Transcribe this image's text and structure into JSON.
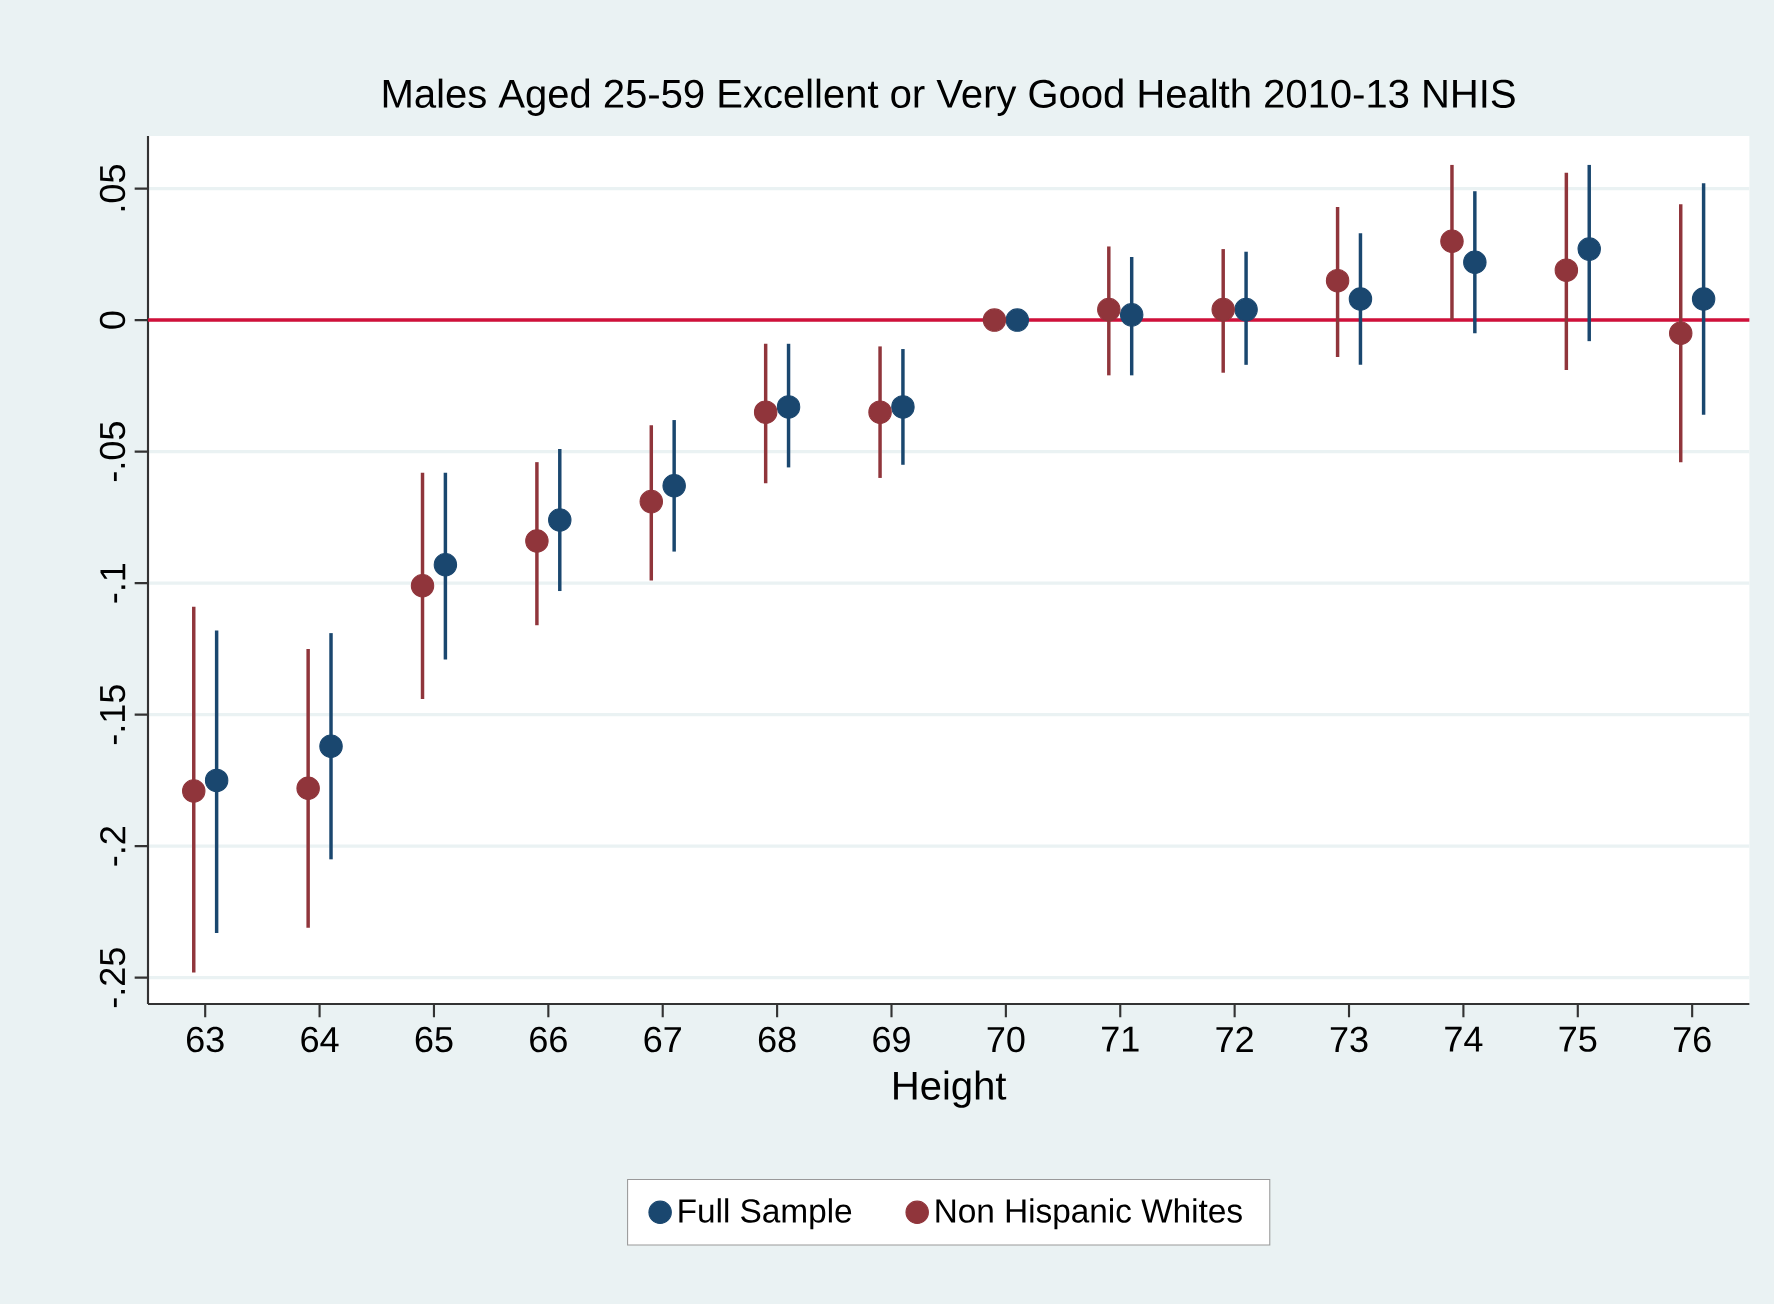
{
  "chart_data": {
    "type": "scatter",
    "title": "Males Aged 25-59 Excellent or Very Good Health 2010-13 NHIS",
    "xlabel": "Height",
    "xlim": [
      62.5,
      76.5
    ],
    "ylim": [
      -0.26,
      0.07
    ],
    "xticks": [
      63,
      64,
      65,
      66,
      67,
      68,
      69,
      70,
      71,
      72,
      73,
      74,
      75,
      76
    ],
    "yticks": [
      {
        "value": 0.05,
        "label": ".05"
      },
      {
        "value": 0,
        "label": "0"
      },
      {
        "value": -0.05,
        "label": "-.05"
      },
      {
        "value": -0.1,
        "label": "-.1"
      },
      {
        "value": -0.15,
        "label": "-.15"
      },
      {
        "value": -0.2,
        "label": "-.2"
      },
      {
        "value": -0.25,
        "label": "-.25"
      }
    ],
    "grid": "y",
    "legend": "bottom",
    "marker": "circle",
    "ref_lines": [
      {
        "axis": "y",
        "value": 0,
        "color": "#d0103a"
      }
    ],
    "series": [
      {
        "name": "Full Sample",
        "color": "#1a476f",
        "x": [
          63.1,
          64.1,
          65.1,
          66.1,
          67.1,
          68.1,
          69.1,
          70.1,
          71.1,
          72.1,
          73.1,
          74.1,
          75.1,
          76.1
        ],
        "values": [
          -0.175,
          -0.162,
          -0.093,
          -0.076,
          -0.063,
          -0.033,
          -0.033,
          0,
          0.002,
          0.004,
          0.008,
          0.022,
          0.027,
          0.008
        ],
        "errors": [
          [
            -0.233,
            -0.118
          ],
          [
            -0.205,
            -0.119
          ],
          [
            -0.129,
            -0.058
          ],
          [
            -0.103,
            -0.049
          ],
          [
            -0.088,
            -0.038
          ],
          [
            -0.056,
            -0.009
          ],
          [
            -0.055,
            -0.011
          ],
          null,
          [
            -0.021,
            0.024
          ],
          [
            -0.017,
            0.026
          ],
          [
            -0.017,
            0.033
          ],
          [
            -0.005,
            0.049
          ],
          [
            -0.008,
            0.059
          ],
          [
            -0.036,
            0.052
          ]
        ]
      },
      {
        "name": "Non Hispanic Whites",
        "color": "#90353b",
        "x": [
          62.9,
          63.9,
          64.9,
          65.9,
          66.9,
          67.9,
          68.9,
          69.9,
          70.9,
          71.9,
          72.9,
          73.9,
          74.9,
          75.9
        ],
        "values": [
          -0.179,
          -0.178,
          -0.101,
          -0.084,
          -0.069,
          -0.035,
          -0.035,
          0,
          0.004,
          0.004,
          0.015,
          0.03,
          0.019,
          -0.005
        ],
        "errors": [
          [
            -0.248,
            -0.109
          ],
          [
            -0.231,
            -0.125
          ],
          [
            -0.144,
            -0.058
          ],
          [
            -0.116,
            -0.054
          ],
          [
            -0.099,
            -0.04
          ],
          [
            -0.062,
            -0.009
          ],
          [
            -0.06,
            -0.01
          ],
          null,
          [
            -0.021,
            0.028
          ],
          [
            -0.02,
            0.027
          ],
          [
            -0.014,
            0.043
          ],
          [
            0,
            0.059
          ],
          [
            -0.019,
            0.056
          ],
          [
            -0.054,
            0.044
          ]
        ]
      }
    ]
  }
}
